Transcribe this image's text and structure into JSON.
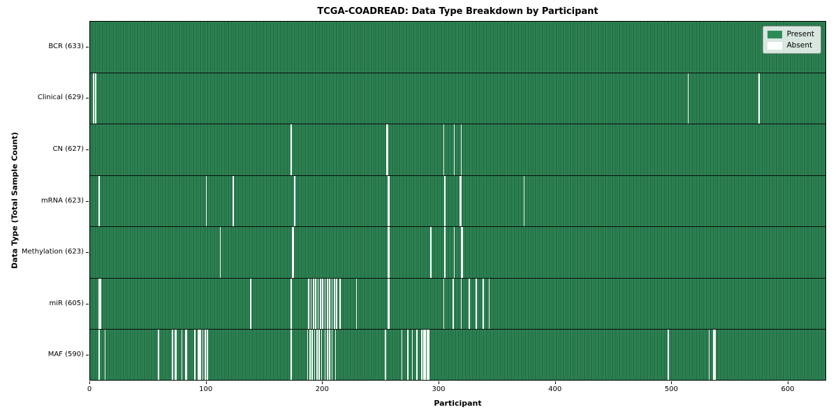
{
  "chart_data": {
    "type": "heatmap",
    "title": "TCGA-COADREAD: Data Type Breakdown by Participant",
    "xlabel": "Participant",
    "ylabel": "Data Type (Total Sample Count)",
    "n_participants": 633,
    "x_ticks": [
      0,
      100,
      200,
      300,
      400,
      500,
      600
    ],
    "grid": false,
    "legend_position": "upper right",
    "legend": [
      {
        "label": "Present",
        "color": "#2e8b57"
      },
      {
        "label": "Absent",
        "color": "#ffffff"
      }
    ],
    "colors": {
      "present": "#2e8b57",
      "cell_edge": "#1e5637",
      "absent": "#ffffff",
      "row_divider": "#0a0a0a"
    },
    "rows": [
      {
        "label": "BCR (633)",
        "data_type": "BCR",
        "present_count": 633,
        "absent_participants": []
      },
      {
        "label": "Clinical (629)",
        "data_type": "Clinical",
        "present_count": 629,
        "absent_participants": [
          3,
          5,
          514,
          575
        ]
      },
      {
        "label": "CN (627)",
        "data_type": "CN",
        "present_count": 627,
        "absent_participants": [
          173,
          255,
          256,
          304,
          313,
          319
        ]
      },
      {
        "label": "mRNA (623)",
        "data_type": "mRNA",
        "present_count": 623,
        "absent_participants": [
          8,
          100,
          123,
          176,
          256,
          257,
          305,
          318,
          319,
          373
        ]
      },
      {
        "label": "Methylation (623)",
        "data_type": "Methylation",
        "present_count": 623,
        "absent_participants": [
          112,
          174,
          175,
          256,
          257,
          293,
          305,
          313,
          319,
          320
        ]
      },
      {
        "label": "miR (605)",
        "data_type": "miR",
        "present_count": 605,
        "absent_participants": [
          8,
          9,
          138,
          173,
          188,
          190,
          192,
          194,
          196,
          198,
          200,
          202,
          204,
          206,
          208,
          210,
          212,
          215,
          229,
          256,
          257,
          304,
          312,
          319,
          326,
          332,
          338,
          343
        ]
      },
      {
        "label": "MAF (590)",
        "data_type": "MAF",
        "present_count": 590,
        "absent_participants": [
          8,
          13,
          59,
          71,
          73,
          74,
          79,
          82,
          83,
          90,
          93,
          94,
          95,
          97,
          99,
          101,
          173,
          187,
          189,
          191,
          193,
          195,
          197,
          199,
          202,
          204,
          206,
          208,
          211,
          254,
          268,
          273,
          277,
          281,
          285,
          287,
          288,
          290,
          291,
          497,
          532,
          536,
          537
        ]
      }
    ]
  }
}
